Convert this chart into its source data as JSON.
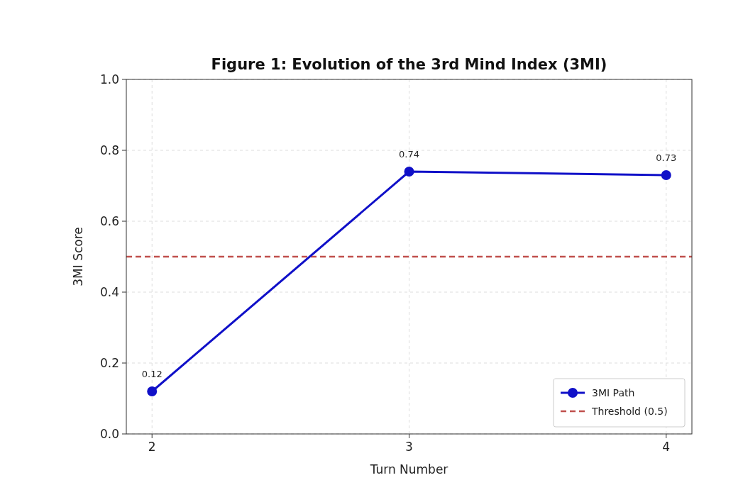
{
  "chart_data": {
    "type": "line",
    "title": "Figure 1: Evolution of the 3rd Mind Index (3MI)",
    "xlabel": "Turn Number",
    "ylabel": "3MI Score",
    "x": [
      2,
      3,
      4
    ],
    "series": [
      {
        "name": "3MI Path",
        "color": "#1010c8",
        "values": [
          0.12,
          0.74,
          0.73
        ]
      }
    ],
    "xlim": [
      1.9,
      4.1
    ],
    "xticks": [
      2,
      3,
      4
    ],
    "ylim": [
      0,
      1
    ],
    "yticks": [
      {
        "value": 0,
        "label": "0.0"
      },
      {
        "value": 0.2,
        "label": "0.2"
      },
      {
        "value": 0.4,
        "label": "0.4"
      },
      {
        "value": 0.6,
        "label": "0.6"
      },
      {
        "value": 0.8,
        "label": "0.8"
      },
      {
        "value": 1,
        "label": "1.0"
      }
    ],
    "ref_lines": [
      {
        "axis": "y",
        "value": 0.5,
        "label": "Threshold (0.5)",
        "color": "#c0504d",
        "line_style": "dashed"
      }
    ],
    "grid": true,
    "legend": "bottom right",
    "marker": "circle",
    "line_style": "solid",
    "data_labels": true
  }
}
